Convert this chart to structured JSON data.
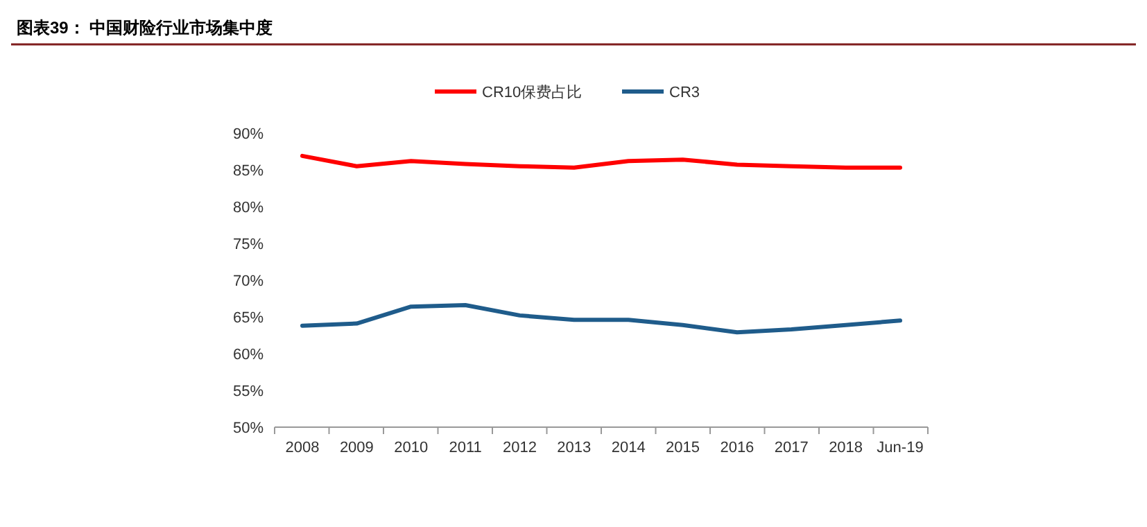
{
  "chart_data": {
    "type": "line",
    "title": "图表39：  中国财险行业市场集中度",
    "categories": [
      "2008",
      "2009",
      "2010",
      "2011",
      "2012",
      "2013",
      "2014",
      "2015",
      "2016",
      "2017",
      "2018",
      "Jun-19"
    ],
    "series": [
      {
        "name": "CR10保费占比",
        "color": "#ff0000",
        "values": [
          86.9,
          85.5,
          86.2,
          85.8,
          85.5,
          85.3,
          86.2,
          86.4,
          85.7,
          85.5,
          85.3,
          85.3
        ]
      },
      {
        "name": "CR3",
        "color": "#1f5c8b",
        "values": [
          63.8,
          64.1,
          66.4,
          66.6,
          65.2,
          64.6,
          64.6,
          63.9,
          62.9,
          63.3,
          63.9,
          64.5
        ]
      }
    ],
    "ylim": [
      50,
      90
    ],
    "yticks": [
      {
        "value": 50,
        "label": "50%"
      },
      {
        "value": 55,
        "label": "55%"
      },
      {
        "value": 60,
        "label": "60%"
      },
      {
        "value": 65,
        "label": "65%"
      },
      {
        "value": 70,
        "label": "70%"
      },
      {
        "value": 75,
        "label": "75%"
      },
      {
        "value": 80,
        "label": "80%"
      },
      {
        "value": 85,
        "label": "85%"
      },
      {
        "value": 90,
        "label": "90%"
      }
    ],
    "legend": "top",
    "grid": false,
    "marker": "none",
    "line_style": "solid"
  }
}
